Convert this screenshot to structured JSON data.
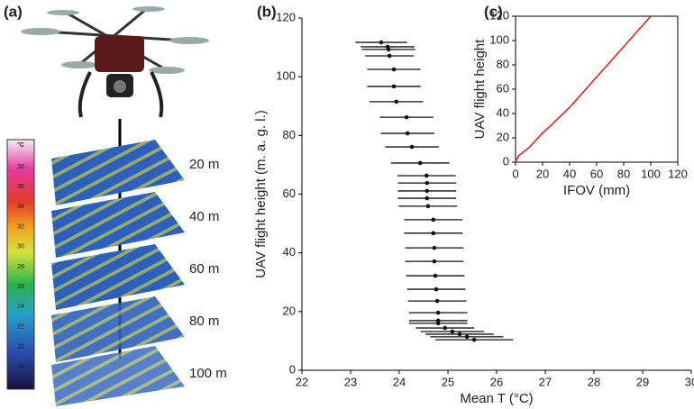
{
  "panel_a": {
    "label": "(a)",
    "colorbar_unit": "°C",
    "colorbar_ticks": [
      "38",
      "36",
      "34",
      "32",
      "30",
      "28",
      "26",
      "24",
      "22",
      "20",
      "18"
    ],
    "heights": [
      "20 m",
      "40 m",
      "60 m",
      "80 m",
      "100 m"
    ]
  },
  "chart_data": [
    {
      "type": "errorbar",
      "panel_label": "(b)",
      "x_label": "Mean T (°C)",
      "y_label": "UAV flight height (m. a. g. l.)",
      "color": "#111111",
      "x": [
        23.63,
        23.76,
        23.78,
        23.8,
        23.89,
        23.89,
        23.94,
        24.15,
        24.17,
        24.26,
        24.43,
        24.56,
        24.57,
        24.57,
        24.57,
        24.59,
        24.7,
        24.7,
        24.72,
        24.72,
        24.74,
        24.76,
        24.78,
        24.8,
        24.8,
        24.8,
        24.94,
        25.09,
        25.24,
        25.39,
        25.54
      ],
      "values": [
        111.7,
        110.2,
        109.3,
        107.1,
        102.5,
        96.7,
        91.5,
        86.2,
        80.7,
        76.1,
        70.6,
        66.3,
        63.8,
        61.1,
        58.6,
        55.9,
        51.3,
        46.7,
        41.7,
        37.1,
        32.2,
        27.6,
        23.6,
        19.6,
        16.9,
        16.0,
        14.4,
        13.2,
        12.3,
        11.4,
        10.4
      ],
      "errors": [
        0.53,
        0.55,
        0.55,
        0.5,
        0.55,
        0.55,
        0.55,
        0.55,
        0.55,
        0.55,
        0.6,
        0.6,
        0.6,
        0.6,
        0.6,
        0.6,
        0.6,
        0.6,
        0.6,
        0.6,
        0.6,
        0.6,
        0.6,
        0.6,
        0.6,
        0.6,
        0.6,
        0.65,
        0.7,
        0.75,
        0.8
      ],
      "xlim": [
        22,
        30
      ],
      "xticks": [
        22,
        23,
        24,
        25,
        26,
        27,
        28,
        29,
        30
      ],
      "ylim": [
        0,
        120
      ],
      "yticks": [
        0,
        20,
        40,
        60,
        80,
        100,
        120
      ]
    },
    {
      "type": "line",
      "panel_label": "(c)",
      "x_label": "IFOV (mm)",
      "y_label": "UAV flight height",
      "color": "#e8231c",
      "x": [
        0,
        2,
        10,
        20,
        25,
        40,
        60,
        80,
        100
      ],
      "values": [
        0,
        5,
        12,
        24,
        29,
        45,
        70,
        95,
        120
      ],
      "xlim": [
        0,
        120
      ],
      "xticks": [
        0,
        20,
        40,
        60,
        80,
        100,
        120
      ],
      "ylim": [
        0,
        120
      ],
      "yticks": [
        0,
        20,
        40,
        60,
        80,
        100,
        120
      ]
    }
  ]
}
